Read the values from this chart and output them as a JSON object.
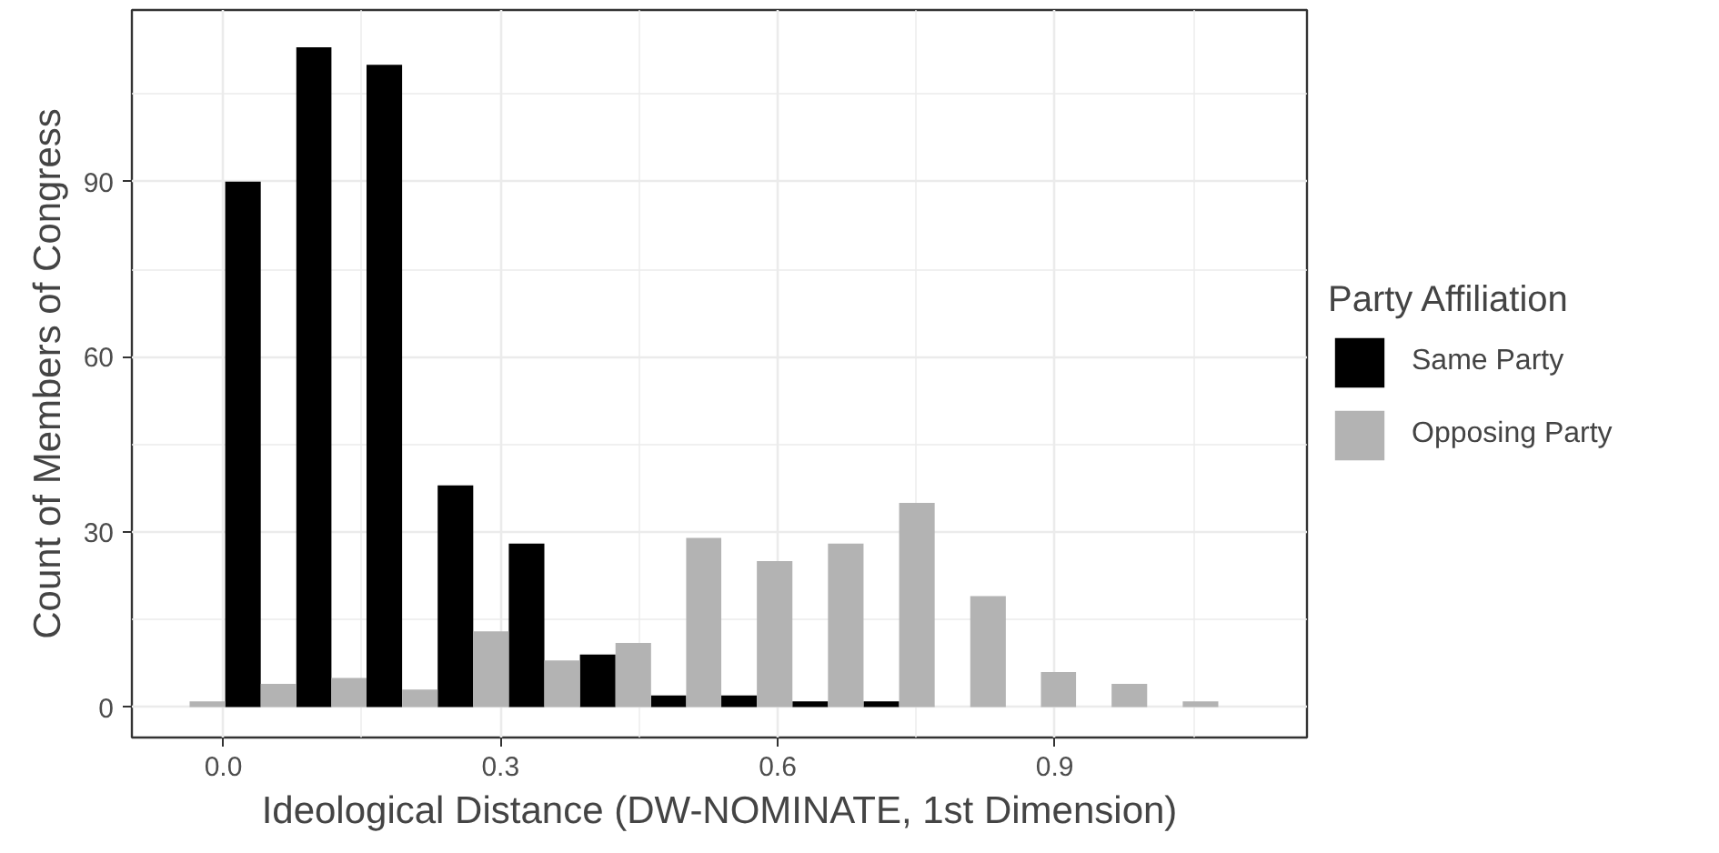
{
  "chart_data": {
    "type": "histogram",
    "xlabel": "Ideological Distance (DW-NOMINATE, 1st Dimension)",
    "ylabel": "Count of Members of Congress",
    "legend_title": "Party Affiliation",
    "bins": [
      -0.075,
      0.002,
      0.079,
      0.155,
      0.232,
      0.309,
      0.386,
      0.463,
      0.539,
      0.616,
      0.693,
      0.77,
      0.847,
      0.923,
      1.0,
      1.077
    ],
    "series": [
      {
        "name": "Same Party",
        "color": "#000000",
        "values": [
          0,
          90,
          113,
          110,
          38,
          28,
          9,
          2,
          2,
          1,
          1,
          0,
          0,
          0,
          0
        ]
      },
      {
        "name": "Opposing Party",
        "color": "#b3b3b3",
        "values": [
          1,
          4,
          5,
          3,
          13,
          8,
          11,
          29,
          25,
          28,
          35,
          19,
          6,
          4,
          1
        ]
      }
    ],
    "xlim": [
      -0.099,
      1.173
    ],
    "ylim": [
      -5.2,
      119.4
    ],
    "xticks": [
      {
        "value": 0,
        "label": "0.0"
      },
      {
        "value": 0.3,
        "label": "0.3"
      },
      {
        "value": 0.6,
        "label": "0.6"
      },
      {
        "value": 0.9,
        "label": "0.9"
      }
    ],
    "yticks": [
      0,
      30,
      60,
      90
    ],
    "grid": true,
    "legend": "right"
  }
}
